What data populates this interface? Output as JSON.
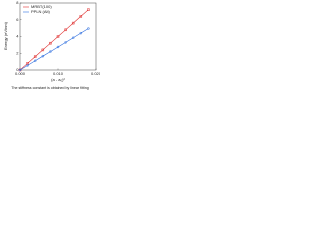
{
  "chart_data": {
    "type": "line",
    "y_label": "Energy (eV/nm)",
    "x_label": "(a - a₀)²",
    "caption": "The stiffness constant is obtained by linear fitting",
    "x": [
      0,
      0.002,
      0.004,
      0.006,
      0.008,
      0.01,
      0.012,
      0.014,
      0.016,
      0.018
    ],
    "series": [
      {
        "name": "MRBT(100)",
        "color": "#e03030",
        "marker": "square",
        "values": [
          0,
          0.8,
          1.6,
          2.4,
          3.2,
          4.0,
          4.8,
          5.6,
          6.4,
          7.2
        ]
      },
      {
        "name": "PPLN (Alt)",
        "color": "#3070e0",
        "marker": "circle",
        "values": [
          0,
          0.55,
          1.1,
          1.65,
          2.2,
          2.75,
          3.3,
          3.85,
          4.4,
          4.95
        ]
      }
    ],
    "xlim": [
      0,
      0.02
    ],
    "xticks": [
      {
        "value": 0,
        "label": "0.000"
      },
      {
        "value": 0.01,
        "label": "0.010"
      },
      {
        "value": 0.02,
        "label": "0.020"
      }
    ],
    "ylim": [
      0,
      8
    ],
    "yticks": [
      0,
      2,
      4,
      6,
      8
    ],
    "legend": "upper-left"
  }
}
